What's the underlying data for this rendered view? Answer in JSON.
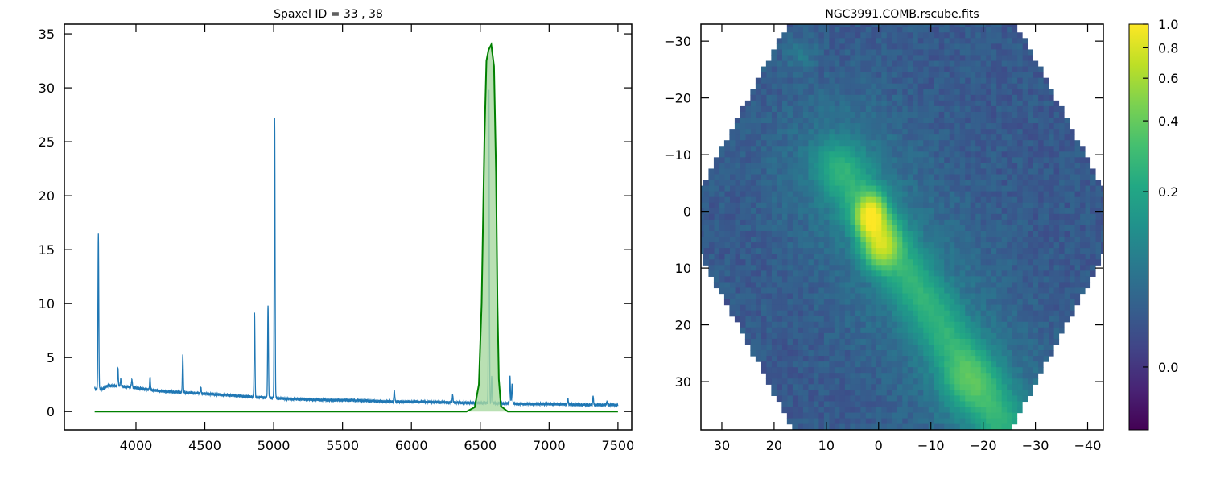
{
  "colors": {
    "spectrum": "#1f77b4",
    "filter_line": "#008000",
    "filter_fill": "#a8d8a0",
    "colormap": "viridis"
  },
  "chart_data": [
    {
      "type": "line",
      "title": "Spaxel ID = 33 , 38",
      "xlabel": "",
      "ylabel": "",
      "xlim": [
        3480,
        7600
      ],
      "ylim": [
        -1.7,
        35.9
      ],
      "xticks": [
        "4000",
        "4500",
        "5000",
        "5500",
        "6000",
        "6500",
        "7000",
        "7500"
      ],
      "yticks": [
        "0",
        "5",
        "10",
        "15",
        "20",
        "25",
        "30",
        "35"
      ],
      "grid": false,
      "series": [
        {
          "kind": "spectrum",
          "continuum": [
            [
              3700,
              2.1
            ],
            [
              3750,
              2.05
            ],
            [
              3800,
              2.4
            ],
            [
              3900,
              2.35
            ],
            [
              4000,
              2.2
            ],
            [
              4100,
              2.0
            ],
            [
              4200,
              1.85
            ],
            [
              4400,
              1.75
            ],
            [
              4600,
              1.55
            ],
            [
              4800,
              1.4
            ],
            [
              4950,
              1.3
            ],
            [
              5100,
              1.15
            ],
            [
              5300,
              1.1
            ],
            [
              5500,
              1.05
            ],
            [
              5800,
              0.95
            ],
            [
              6000,
              0.9
            ],
            [
              6300,
              0.85
            ],
            [
              6500,
              0.78
            ],
            [
              6700,
              0.75
            ],
            [
              7000,
              0.68
            ],
            [
              7300,
              0.63
            ],
            [
              7500,
              0.6
            ]
          ],
          "emission_lines": [
            [
              3727,
              16.4
            ],
            [
              3869,
              4.0
            ],
            [
              3889,
              3.0
            ],
            [
              3970,
              3.0
            ],
            [
              4102,
              3.2
            ],
            [
              4340,
              5.2
            ],
            [
              4471,
              2.2
            ],
            [
              4861,
              9.1
            ],
            [
              4959,
              9.8
            ],
            [
              5007,
              27.2
            ],
            [
              5876,
              2.0
            ],
            [
              6300,
              1.5
            ],
            [
              6563,
              29.9
            ],
            [
              6583,
              3.2
            ],
            [
              6716,
              3.3
            ],
            [
              6731,
              2.6
            ],
            [
              7136,
              1.2
            ],
            [
              7320,
              1.4
            ],
            [
              7420,
              0.9
            ]
          ]
        },
        {
          "kind": "filter",
          "points": [
            [
              3700,
              0
            ],
            [
              6400,
              0
            ],
            [
              6460,
              0.4
            ],
            [
              6490,
              2.5
            ],
            [
              6510,
              10
            ],
            [
              6530,
              25
            ],
            [
              6545,
              32.5
            ],
            [
              6560,
              33.5
            ],
            [
              6580,
              34
            ],
            [
              6600,
              32
            ],
            [
              6615,
              22
            ],
            [
              6625,
              10
            ],
            [
              6635,
              3
            ],
            [
              6650,
              0.5
            ],
            [
              6700,
              0
            ],
            [
              7500,
              0
            ]
          ]
        }
      ]
    },
    {
      "type": "heatmap",
      "title": "NGC3991.COMB.rscube.fits",
      "xlim": [
        34,
        -43
      ],
      "ylim": [
        38.5,
        -33
      ],
      "xticks": [
        "30",
        "20",
        "10",
        "0",
        "−10",
        "−20",
        "−30",
        "−40"
      ],
      "yticks": [
        "−30",
        "−20",
        "−10",
        "0",
        "10",
        "20",
        "30"
      ],
      "colorbar": {
        "ticks": [
          "0.0",
          "0.2",
          "0.4",
          "0.6",
          "0.8",
          "1.0"
        ],
        "scale": "asinh",
        "range": [
          -0.05,
          1.0
        ]
      },
      "features": {
        "footprint": "hexagonal",
        "bright_core": [
          1.5,
          1
        ],
        "tail_end": [
          -22,
          35
        ],
        "secondary_clump": [
          -17,
          30
        ],
        "background_level": 0.04
      }
    }
  ]
}
